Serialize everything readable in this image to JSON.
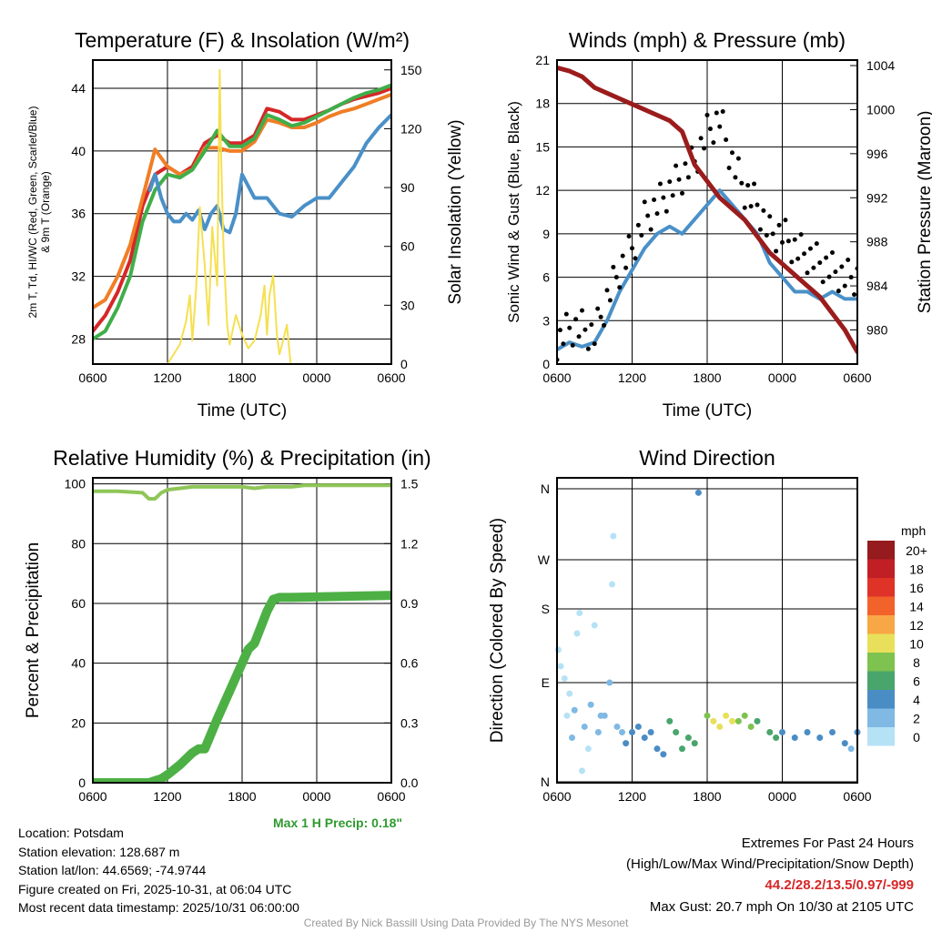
{
  "chart_data": [
    {
      "type": "line",
      "title": "Temperature (F) & Insolation (W/m²)",
      "xlabel": "Time (UTC)",
      "ylabel": "2m T, Td, HI/WC (Red, Green, Scarlet/Blue) & 9m T (Orange)",
      "ylabel2": "Solar Insolation (Yellow)",
      "xticks": [
        "0600",
        "1200",
        "1800",
        "0000",
        "0600"
      ],
      "ylim": [
        26.4,
        45.8
      ],
      "yticks": [
        28,
        32,
        36,
        40,
        44
      ],
      "y2lim": [
        0,
        155
      ],
      "y2ticks": [
        0,
        30,
        60,
        90,
        120,
        150
      ],
      "series": [
        {
          "name": "2m T",
          "color": "#d62728",
          "axis": "left",
          "x": [
            0,
            1,
            2,
            3,
            4,
            5,
            6,
            7,
            8,
            9,
            10,
            11,
            12,
            13,
            14,
            15,
            16,
            17,
            18,
            19,
            20,
            21,
            22,
            23,
            24
          ],
          "y": [
            28.5,
            29.5,
            31,
            33,
            36.5,
            38.5,
            39,
            38.5,
            39,
            40.5,
            41,
            40.5,
            40.5,
            41,
            42.7,
            42.5,
            42,
            42,
            42.3,
            42.6,
            43,
            43.3,
            43.5,
            43.7,
            44
          ]
        },
        {
          "name": "9m T",
          "color": "#f07e26",
          "axis": "left",
          "x": [
            0,
            1,
            2,
            3,
            4,
            5,
            6,
            7,
            8,
            9,
            10,
            11,
            12,
            13,
            14,
            15,
            16,
            17,
            18,
            19,
            20,
            21,
            22,
            23,
            24
          ],
          "y": [
            30,
            30.5,
            32,
            34,
            37,
            40.1,
            39,
            38.5,
            38.8,
            40.2,
            40.2,
            40,
            40,
            40.6,
            42,
            41.8,
            41.5,
            41.5,
            41.8,
            42.2,
            42.5,
            42.7,
            43,
            43.3,
            43.6
          ]
        },
        {
          "name": "Td",
          "color": "#3fae49",
          "axis": "left",
          "x": [
            0,
            1,
            2,
            3,
            4,
            5,
            6,
            7,
            8,
            9,
            10,
            11,
            12,
            13,
            14,
            15,
            16,
            17,
            18,
            19,
            20,
            21,
            22,
            23,
            24
          ],
          "y": [
            28,
            28.5,
            30,
            32,
            35.5,
            37.5,
            38.5,
            38.3,
            38.8,
            40,
            41.3,
            40.3,
            40.3,
            40.8,
            42.3,
            42,
            41.6,
            41.8,
            42.2,
            42.6,
            43,
            43.4,
            43.7,
            43.9,
            44.2
          ]
        },
        {
          "name": "WC",
          "color": "#4a90c8",
          "axis": "left",
          "x": [
            4.6,
            5,
            5.5,
            6,
            6.5,
            7,
            7.5,
            8,
            8.5,
            9,
            9.5,
            10,
            10.5,
            11,
            11.5,
            12,
            13,
            14,
            15,
            16,
            17,
            18,
            19,
            20,
            21,
            22,
            23,
            24
          ],
          "y": [
            37.5,
            38.5,
            37,
            36,
            35.5,
            35.5,
            36,
            35.6,
            36.2,
            35,
            36,
            36.5,
            35,
            34.8,
            36,
            38.5,
            37,
            37,
            36,
            35.8,
            36.5,
            37,
            37,
            38,
            39,
            40.5,
            41.5,
            42.3
          ]
        },
        {
          "name": "Solar",
          "color": "#f5e050",
          "axis": "right",
          "x": [
            0,
            6,
            6.5,
            7,
            7.5,
            7.8,
            8,
            8.3,
            8.6,
            9,
            9.3,
            9.6,
            10,
            10.2,
            10.3,
            10.5,
            10.8,
            11,
            11.5,
            12,
            12.5,
            13,
            13.5,
            13.8,
            14,
            14.2,
            14.5,
            14.8,
            15,
            15.3,
            15.6,
            15.9,
            24
          ],
          "y": [
            0,
            0,
            5,
            10,
            22,
            35,
            12,
            38,
            80,
            50,
            20,
            70,
            40,
            150,
            110,
            60,
            20,
            10,
            25,
            15,
            8,
            12,
            25,
            40,
            15,
            35,
            45,
            15,
            5,
            12,
            20,
            0,
            0
          ]
        }
      ]
    },
    {
      "type": "line",
      "title": "Winds (mph) & Pressure (mb)",
      "xlabel": "Time (UTC)",
      "ylabel": "Sonic Wind & Gust (Blue, Black)",
      "ylabel2": "Station Pressure (Maroon)",
      "xticks": [
        "0600",
        "1200",
        "1800",
        "0000",
        "0600"
      ],
      "ylim": [
        0,
        21
      ],
      "yticks": [
        0,
        3,
        6,
        9,
        12,
        15,
        18,
        21
      ],
      "y2lim": [
        976.9,
        1004.5
      ],
      "y2ticks": [
        980,
        984,
        988,
        992,
        996,
        1000,
        1004
      ],
      "series": [
        {
          "name": "Sonic Wind",
          "color": "#4a90c8",
          "axis": "left",
          "x": [
            0,
            1,
            2,
            3,
            4,
            5,
            6,
            7,
            8,
            9,
            10,
            11,
            12,
            13,
            14,
            15,
            16,
            17,
            18,
            19,
            20,
            21,
            22,
            23,
            24
          ],
          "y": [
            1,
            1.5,
            1.2,
            1.5,
            3,
            5,
            6.5,
            8,
            9,
            9.5,
            9,
            10,
            11,
            12,
            11,
            10,
            9,
            7,
            6,
            5,
            5,
            4.5,
            5,
            4.5,
            4.5
          ]
        },
        {
          "name": "Gust",
          "color": "#000000",
          "axis": "left",
          "style": "dots",
          "x": [
            0,
            1,
            2,
            3,
            4,
            5,
            6,
            7,
            8,
            9,
            10,
            11,
            12,
            13,
            14,
            15,
            16,
            17,
            18,
            19,
            20,
            21,
            22,
            23,
            24
          ],
          "y": [
            1.5,
            2.5,
            2.5,
            2,
            4.5,
            6.5,
            8,
            10,
            11,
            12,
            13,
            14,
            16,
            17,
            14,
            12,
            11,
            9,
            9,
            8,
            7.5,
            7,
            6.5,
            6,
            6
          ]
        },
        {
          "name": "Pressure",
          "color": "#9b1c1c",
          "axis": "right",
          "x": [
            0,
            1,
            2,
            3,
            4,
            5,
            6,
            7,
            8,
            9,
            10,
            11,
            12,
            13,
            14,
            15,
            16,
            17,
            18,
            19,
            20,
            21,
            22,
            23,
            24
          ],
          "y": [
            1003.8,
            1003.5,
            1003,
            1002,
            1001.5,
            1001,
            1000.5,
            1000,
            999.5,
            999,
            998,
            995,
            993.5,
            992,
            991,
            990,
            988.5,
            987,
            986,
            985,
            984,
            983,
            981.5,
            980,
            978
          ]
        }
      ]
    },
    {
      "type": "line",
      "title": "Relative Humidity (%) & Precipitation (in)",
      "ylabel": "Percent & Precipitation",
      "xticks": [
        "0600",
        "1200",
        "1800",
        "0000",
        "0600"
      ],
      "ylim": [
        0,
        102
      ],
      "yticks": [
        0,
        20,
        40,
        60,
        80,
        100
      ],
      "y2lim": [
        0,
        1.53
      ],
      "y2ticks": [
        "0.0",
        "0.3",
        "0.6",
        "0.9",
        "1.2",
        "1.5"
      ],
      "annotation": "Max 1 H Precip: 0.18\"",
      "series": [
        {
          "name": "RH",
          "color": "#8fc658",
          "axis": "left",
          "x": [
            0,
            2,
            4,
            4.5,
            5,
            5.5,
            6,
            8,
            10,
            12,
            13,
            14,
            16,
            17,
            20,
            24
          ],
          "y": [
            97.5,
            97.5,
            97,
            95,
            95,
            97,
            98,
            99,
            99,
            99,
            98.5,
            99,
            99,
            99.5,
            99.5,
            99.5
          ]
        },
        {
          "name": "Precip",
          "color": "#4db045",
          "axis": "right",
          "x": [
            0,
            4.5,
            5,
            5.5,
            6,
            7,
            8,
            8.5,
            9,
            10,
            11,
            12,
            12.5,
            13,
            14,
            14.5,
            15,
            16,
            24
          ],
          "y": [
            0,
            0,
            0.01,
            0.02,
            0.04,
            0.09,
            0.15,
            0.17,
            0.17,
            0.32,
            0.46,
            0.6,
            0.67,
            0.7,
            0.86,
            0.92,
            0.93,
            0.93,
            0.94
          ]
        }
      ]
    },
    {
      "type": "scatter",
      "title": "Wind Direction",
      "ylabel": "Direction (Colored By Speed)",
      "xticks": [
        "0600",
        "1200",
        "1800",
        "0000",
        "0600"
      ],
      "yticks": [
        "N",
        "E",
        "S",
        "W",
        "N"
      ],
      "legend": {
        "title": "mph",
        "labels": [
          "20+",
          "18",
          "16",
          "14",
          "12",
          "10",
          "8",
          "6",
          "4",
          "2",
          "0"
        ],
        "colors": [
          "#951b1e",
          "#c11f26",
          "#df3328",
          "#f2622b",
          "#f8a747",
          "#e8e05a",
          "#7ec24f",
          "#49a56c",
          "#4a8dc5",
          "#7fb9e4",
          "#b6e2f6"
        ]
      },
      "points": [
        [
          0.1,
          130,
          0
        ],
        [
          0.3,
          110,
          1
        ],
        [
          0.6,
          95,
          1
        ],
        [
          0.8,
          60,
          1
        ],
        [
          1,
          80,
          1
        ],
        [
          1.2,
          40,
          2
        ],
        [
          1.4,
          65,
          2
        ],
        [
          1.6,
          150,
          1
        ],
        [
          1.8,
          175,
          1
        ],
        [
          2,
          10,
          1
        ],
        [
          2.2,
          50,
          2
        ],
        [
          2.5,
          30,
          1
        ],
        [
          2.7,
          70,
          2
        ],
        [
          3,
          160,
          1
        ],
        [
          3.3,
          45,
          3
        ],
        [
          3.5,
          60,
          3
        ],
        [
          3.8,
          60,
          2
        ],
        [
          4.2,
          90,
          2
        ],
        [
          4.4,
          225,
          1
        ],
        [
          4.5,
          300,
          1
        ],
        [
          4.8,
          50,
          3
        ],
        [
          5.2,
          45,
          3
        ],
        [
          5.5,
          35,
          4
        ],
        [
          6,
          45,
          4
        ],
        [
          6.5,
          50,
          4
        ],
        [
          7,
          40,
          4
        ],
        [
          7.5,
          45,
          5
        ],
        [
          8,
          30,
          4
        ],
        [
          8.5,
          25,
          5
        ],
        [
          9,
          55,
          7
        ],
        [
          9.5,
          45,
          7
        ],
        [
          10,
          30,
          7
        ],
        [
          10.5,
          40,
          7
        ],
        [
          11,
          35,
          6
        ],
        [
          11.3,
          355,
          4
        ],
        [
          12,
          60,
          8
        ],
        [
          12.5,
          55,
          10
        ],
        [
          13,
          50,
          11
        ],
        [
          13.5,
          60,
          10
        ],
        [
          14,
          55,
          10
        ],
        [
          14.5,
          55,
          9
        ],
        [
          15,
          60,
          8
        ],
        [
          15.5,
          50,
          8
        ],
        [
          16,
          55,
          7
        ],
        [
          17,
          45,
          6
        ],
        [
          17.5,
          40,
          6
        ],
        [
          18,
          45,
          5
        ],
        [
          19,
          40,
          4
        ],
        [
          20,
          45,
          4
        ],
        [
          21,
          40,
          4
        ],
        [
          22,
          45,
          4
        ],
        [
          23,
          35,
          4
        ],
        [
          23.5,
          30,
          3
        ],
        [
          24,
          45,
          4
        ]
      ]
    }
  ],
  "footer": {
    "location": "Location: Potsdam",
    "elevation": "Station elevation: 128.687 m",
    "latlon": "Station lat/lon: 44.6569; -74.9744",
    "created": "Figure created on Fri, 2025-10-31, at 06:04 UTC",
    "recent": "Most recent data timestamp: 2025/10/31 06:00:00",
    "extremes_title": "Extremes For Past 24 Hours",
    "extremes_sub": "(High/Low/Max Wind/Precipitation/Snow Depth)",
    "extremes_values": "44.2/28.2/13.5/0.97/-999",
    "max_gust": "Max Gust: 20.7 mph On 10/30 at 2105 UTC",
    "credit": "Created By Nick Bassill Using Data Provided By The NYS Mesonet"
  }
}
